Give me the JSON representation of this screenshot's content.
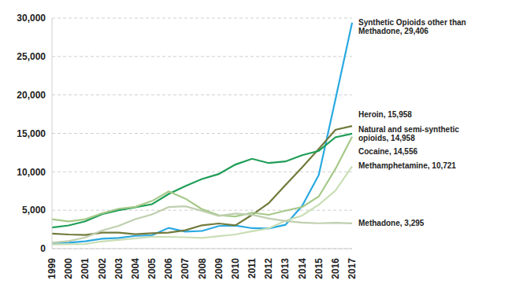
{
  "chart_data": {
    "type": "line",
    "categories": [
      "1999",
      "2000",
      "2001",
      "2002",
      "2003",
      "2004",
      "2005",
      "2006",
      "2007",
      "2008",
      "2009",
      "2010",
      "2011",
      "2012",
      "2013",
      "2014",
      "2015",
      "2016",
      "2017"
    ],
    "series": [
      {
        "name": "Synthetic Opioids other than Methadone",
        "color": "#29a9e1",
        "values": [
          730,
          782,
          957,
          1295,
          1400,
          1664,
          1742,
          2707,
          2213,
          2306,
          2946,
          3007,
          2666,
          2628,
          3105,
          5544,
          9580,
          19413,
          29406
        ]
      },
      {
        "name": "Heroin",
        "color": "#717a3c",
        "values": [
          1960,
          1842,
          1779,
          2089,
          2080,
          1878,
          2009,
          2088,
          2399,
          3041,
          3278,
          3036,
          4397,
          5925,
          8257,
          10574,
          12989,
          15469,
          15958
        ]
      },
      {
        "name": "Natural and semi-synthetic opioids",
        "color": "#1e9e57",
        "values": [
          2749,
          3020,
          3562,
          4486,
          5006,
          5387,
          5786,
          7110,
          8137,
          9070,
          9713,
          10943,
          11693,
          11140,
          11346,
          12159,
          12727,
          14487,
          14958
        ]
      },
      {
        "name": "Cocaine",
        "color": "#a6c98a",
        "values": [
          3822,
          3544,
          3833,
          4599,
          5199,
          5443,
          6208,
          7448,
          6512,
          5129,
          4350,
          4183,
          4681,
          4404,
          4944,
          5415,
          6784,
          10375,
          14556
        ]
      },
      {
        "name": "Methamphetamine",
        "color": "#c9deb5",
        "values": [
          547,
          578,
          606,
          944,
          1144,
          1333,
          1541,
          1535,
          1486,
          1388,
          1631,
          1842,
          2266,
          2635,
          3627,
          4298,
          5716,
          7542,
          10721
        ]
      },
      {
        "name": "Methadone",
        "color": "#bfcfae",
        "values": [
          784,
          986,
          1456,
          2358,
          2972,
          3845,
          4460,
          5406,
          5518,
          4924,
          4254,
          4577,
          4418,
          3932,
          3591,
          3400,
          3301,
          3373,
          3295
        ]
      }
    ],
    "annotations": [
      "Synthetic Opioids other than Methadone, 29,406",
      "Heroin, 15,958",
      "Natural and semi-synthetic opioids, 14,958",
      "Cocaine, 14,556",
      "Methamphetamine, 10,721",
      "Methadone, 3,295"
    ],
    "ylim": [
      0,
      30000
    ],
    "yticks": [
      0,
      {
        "value": 5000,
        "label": "5,000"
      },
      {
        "value": 10000,
        "label": "10,000"
      },
      {
        "value": 15000,
        "label": "15,000"
      },
      {
        "value": 20000,
        "label": "20,000"
      },
      {
        "value": 25000,
        "label": "25,000"
      },
      {
        "value": 30000,
        "label": "30,000"
      }
    ],
    "grid": true
  }
}
